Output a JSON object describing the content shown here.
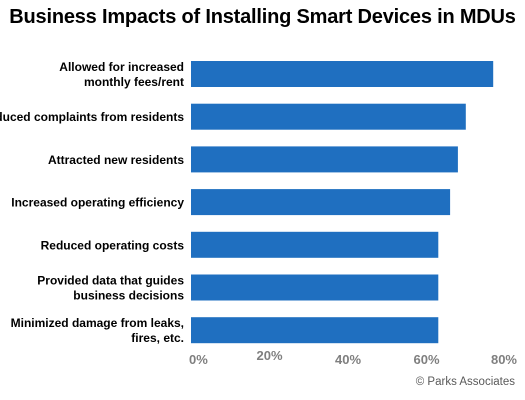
{
  "chart_data": {
    "type": "bar",
    "orientation": "horizontal",
    "title": "Business Impacts of Installing Smart Devices in MDUs",
    "categories": [
      "Allowed for increased monthly fees/rent",
      "Reduced complaints from residents",
      "Attracted new residents",
      "Increased operating efficiency",
      "Reduced operating costs",
      "Provided data that guides business decisions",
      "Minimized damage from leaks, fires, etc."
    ],
    "category_lines": [
      [
        "Allowed for increased",
        "monthly fees/rent"
      ],
      [
        "Reduced complaints from residents"
      ],
      [
        "Attracted new residents"
      ],
      [
        "Increased operating efficiency"
      ],
      [
        "Reduced operating costs"
      ],
      [
        "Provided data that guides",
        "business decisions"
      ],
      [
        "Minimized damage from leaks,",
        "fires, etc."
      ]
    ],
    "values": [
      77,
      70,
      68,
      66,
      63,
      63,
      63
    ],
    "xlim": [
      0,
      80
    ],
    "xticks": [
      0,
      20,
      40,
      60,
      80
    ],
    "xtick_labels": [
      "0%",
      "20%",
      "40%",
      "60%",
      "80%"
    ],
    "bar_color": "#1f6fc0",
    "grid": false,
    "legend": "none"
  },
  "credit": "© Parks Associates"
}
